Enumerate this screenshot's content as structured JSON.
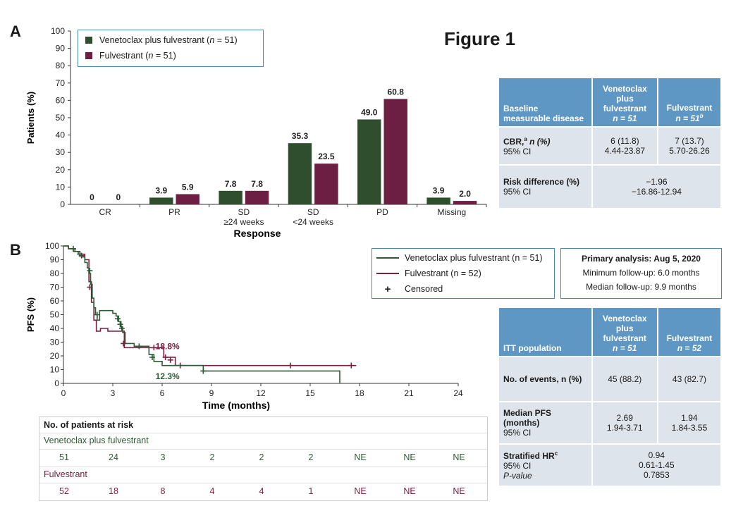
{
  "figure_title": "Figure 1",
  "panel_a_letter": "A",
  "panel_b_letter": "B",
  "colors": {
    "venetoclax": "#2e4e2e",
    "fulvestrant": "#6d1f43",
    "table_header": "#5f97c4",
    "table_cell": "#dde4ec",
    "box_border": "#4b88ad"
  },
  "panel_a": {
    "legend": {
      "s1_prefix": "Venetoclax plus fulvestrant (",
      "s2_prefix": "Fulvestrant (",
      "n_var": "n",
      "s1_suffix": " = 51)",
      "s2_suffix": " = 51)"
    },
    "table": {
      "header": {
        "label1": "Baseline",
        "label2": "measurable disease",
        "col1_l1": "Venetoclax",
        "col1_l2": "plus",
        "col1_l3": "fulvestrant",
        "col1_n": "n = 51",
        "col2_l1": "Fulvestrant",
        "col2_n": "n = 51",
        "col2_sup": "b"
      },
      "cbr_label": "CBR,",
      "cbr_sup": "a",
      "cbr_suffix": " n (%)",
      "ci_label": "95% CI",
      "cbr_v1": "6 (11.8)",
      "cbr_v2": "7 (13.7)",
      "ci_v1": "4.44-23.87",
      "ci_v2": "5.70-26.26",
      "rd_label": "Risk difference (%)",
      "rd_ci_label": "95% CI",
      "rd_value": "−1.96",
      "rd_ci": "−16.86-12.94"
    }
  },
  "panel_b": {
    "legend": {
      "s1": "Venetoclax plus fulvestrant (n = 51)",
      "s2": "Fulvestrant (n = 52)",
      "censored": "Censored",
      "censor_symbol": "+"
    },
    "info": {
      "line1": "Primary analysis: Aug 5, 2020",
      "line2": "Minimum follow-up: 6.0 months",
      "line3": "Median follow-up: 9.9 months"
    },
    "risk_table": {
      "title": "No. of patients at risk",
      "s1_label": "Venetoclax plus fulvestrant",
      "s1_values": [
        "51",
        "24",
        "3",
        "2",
        "2",
        "2",
        "NE",
        "NE",
        "NE"
      ],
      "s2_label": "Fulvestrant",
      "s2_values": [
        "52",
        "18",
        "8",
        "4",
        "4",
        "1",
        "NE",
        "NE",
        "NE"
      ]
    },
    "table": {
      "header": {
        "label": "ITT population",
        "col1_l1": "Venetoclax",
        "col1_l2": "plus",
        "col1_l3": "fulvestrant",
        "col1_n": "n = 51",
        "col2_l1": "Fulvestrant",
        "col2_n": "n = 52"
      },
      "events_label": "No. of events, n (%)",
      "events_v1": "45 (88.2)",
      "events_v2": "43 (82.7)",
      "mpfs_label": "Median PFS (months)",
      "mpfs_ci_label": "95% CI",
      "mpfs_v1": "2.69",
      "mpfs_v2": "1.94",
      "mpfs_ci1": "1.94-3.71",
      "mpfs_ci2": "1.84-3.55",
      "hr_label": "Stratified HR",
      "hr_sup": "c",
      "hr_ci_label": "95% CI",
      "hr_p_label": "P-value",
      "hr_value": "0.94",
      "hr_ci": "0.61-1.45",
      "hr_p": "0.7853"
    }
  },
  "chart_data": [
    {
      "type": "bar",
      "ylabel": "Patients (%)",
      "xlabel": "Response",
      "ylim": [
        0,
        100
      ],
      "yticks": [
        0,
        10,
        20,
        30,
        40,
        50,
        60,
        70,
        80,
        90,
        100
      ],
      "categories": [
        "CR",
        "PR",
        "SD\n≥24 weeks",
        "SD\n<24 weeks",
        "PD",
        "Missing"
      ],
      "series": [
        {
          "name": "Venetoclax plus fulvestrant (n = 51)",
          "values": [
            0,
            3.9,
            7.8,
            35.3,
            49.0,
            3.9
          ],
          "labels": [
            "0",
            "3.9",
            "7.8",
            "35.3",
            "49.0",
            "3.9"
          ]
        },
        {
          "name": "Fulvestrant (n = 51)",
          "values": [
            0,
            5.9,
            7.8,
            23.5,
            60.8,
            2.0
          ],
          "labels": [
            "0",
            "5.9",
            "7.8",
            "23.5",
            "60.8",
            "2.0"
          ]
        }
      ],
      "legend_position": "top-left"
    },
    {
      "type": "line",
      "ylabel": "PFS (%)",
      "xlabel": "Time (months)",
      "xlim": [
        0,
        24
      ],
      "ylim": [
        0,
        100
      ],
      "xticks": [
        0,
        3,
        6,
        9,
        12,
        15,
        18,
        21,
        24
      ],
      "yticks": [
        0,
        10,
        20,
        30,
        40,
        50,
        60,
        70,
        80,
        90,
        100
      ],
      "annotations": [
        "18.8%",
        "12.3%"
      ],
      "series": [
        {
          "name": "Venetoclax plus fulvestrant (n = 51)",
          "x": [
            0,
            0.3,
            0.6,
            0.9,
            1.1,
            1.3,
            1.45,
            1.55,
            1.65,
            1.75,
            1.85,
            1.95,
            2.05,
            2.2,
            2.4,
            2.7,
            3.0,
            3.2,
            3.35,
            3.5,
            3.6,
            3.75,
            4.3,
            5.2,
            5.5,
            6.0,
            8.5,
            16.8
          ],
          "y": [
            100,
            98,
            96,
            94,
            92,
            88,
            84,
            80,
            72,
            62,
            55,
            50,
            46,
            53,
            53,
            53,
            51,
            49,
            45,
            41,
            37,
            29,
            27,
            21,
            16,
            13,
            9,
            0
          ],
          "censored": [
            [
              0.6,
              98
            ],
            [
              1.0,
              94
            ],
            [
              1.6,
              82
            ],
            [
              2.05,
              50
            ],
            [
              3.3,
              47
            ],
            [
              3.45,
              43
            ],
            [
              3.55,
              40
            ],
            [
              4.6,
              27
            ],
            [
              5.4,
              19
            ],
            [
              8.5,
              9
            ]
          ]
        },
        {
          "name": "Fulvestrant (n = 52)",
          "x": [
            0,
            0.3,
            0.7,
            1.0,
            1.3,
            1.55,
            1.7,
            1.85,
            2.0,
            2.25,
            2.7,
            3.5,
            3.7,
            5.4,
            6.1,
            6.8,
            17.8
          ],
          "y": [
            100,
            98,
            96,
            94,
            90,
            74,
            59,
            46,
            38,
            40,
            38,
            38,
            26,
            26,
            19,
            13,
            13
          ],
          "censored": [
            [
              1.1,
              93
            ],
            [
              1.6,
              70
            ],
            [
              3.65,
              29
            ],
            [
              5.5,
              26
            ],
            [
              6.2,
              19
            ],
            [
              6.5,
              17
            ],
            [
              7.1,
              13
            ],
            [
              13.8,
              13
            ],
            [
              17.5,
              13
            ]
          ]
        }
      ],
      "legend_position": "top-right"
    }
  ]
}
